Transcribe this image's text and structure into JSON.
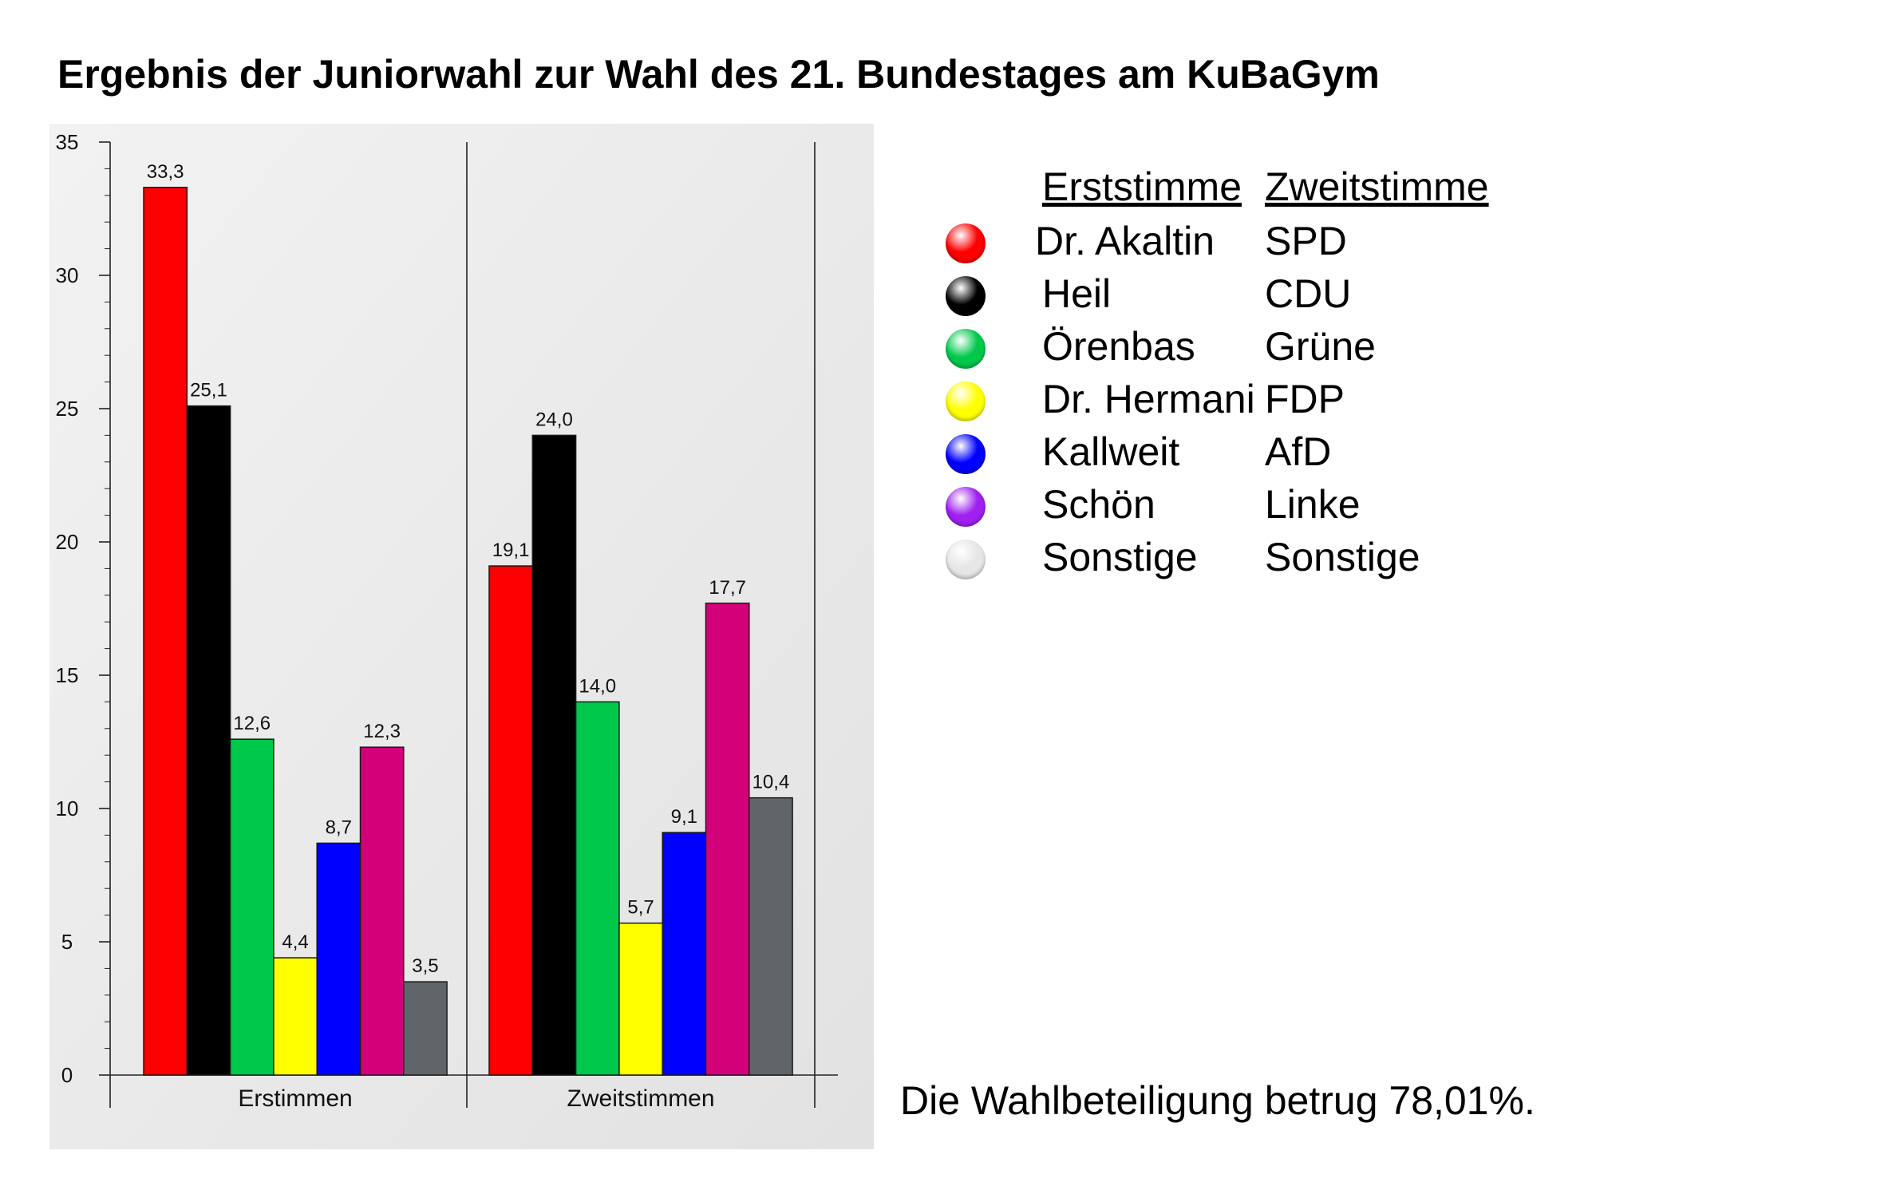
{
  "title": "Ergebnis der Juniorwahl zur Wahl des 21. Bundestages am KuBaGym",
  "turnout_text": "Die Wahlbeteiligung betrug 78,01%.",
  "legend": {
    "header_first": "Erststimme",
    "header_second": "Zweitstimme",
    "rows": [
      {
        "candidate": "Dr. Akaltin",
        "party": "SPD",
        "color": "#ff0000"
      },
      {
        "candidate": "Heil",
        "party": "CDU",
        "color": "#000000"
      },
      {
        "candidate": "Örenbas",
        "party": "Grüne",
        "color": "#00c84a"
      },
      {
        "candidate": "Dr. Hermani",
        "party": "FDP",
        "color": "#ffff00"
      },
      {
        "candidate": "Kallweit",
        "party": "AfD",
        "color": "#0000ff"
      },
      {
        "candidate": "Schön",
        "party": "Linke",
        "color": "#a020f0"
      },
      {
        "candidate": "Sonstige",
        "party": "Sonstige",
        "color": "#e6e6e6"
      }
    ]
  },
  "chart_data": {
    "type": "bar",
    "title": "",
    "xlabel": "",
    "ylabel": "",
    "ylim": [
      0,
      35
    ],
    "yticks": [
      0,
      5,
      10,
      15,
      20,
      25,
      30,
      35
    ],
    "categories": [
      "Erstimmen",
      "Zweitstimmen"
    ],
    "series": [
      {
        "values": [
          33.3,
          19.1
        ],
        "labels": [
          "33,3",
          "19,1"
        ],
        "color": "#ff0000"
      },
      {
        "values": [
          25.1,
          24.0
        ],
        "labels": [
          "25,1",
          "24,0"
        ],
        "color": "#000000"
      },
      {
        "values": [
          12.6,
          14.0
        ],
        "labels": [
          "12,6",
          "14,0"
        ],
        "color": "#00c84a"
      },
      {
        "values": [
          4.4,
          5.7
        ],
        "labels": [
          "4,4",
          "5,7"
        ],
        "color": "#ffff00"
      },
      {
        "values": [
          8.7,
          9.1
        ],
        "labels": [
          "8,7",
          "9,1"
        ],
        "color": "#0000ff"
      },
      {
        "values": [
          12.3,
          17.7
        ],
        "labels": [
          "12,3",
          "17,7"
        ],
        "color": "#d4007a"
      },
      {
        "values": [
          3.5,
          10.4
        ],
        "labels": [
          "3,5",
          "10,4"
        ],
        "color": "#5f6568"
      }
    ],
    "grid": false,
    "legend_position": "right"
  }
}
